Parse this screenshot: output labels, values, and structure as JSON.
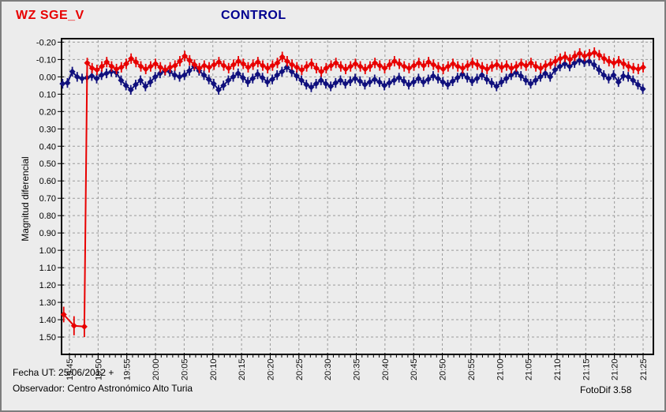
{
  "header": {
    "target_label": "WZ SGE_V",
    "control_label": "CONTROL"
  },
  "footer": {
    "fecha": "Fecha UT: 25/06/2012 +",
    "observador": "Observador: Centro Astronómico Alto Turia",
    "software": "FotoDif 3.58"
  },
  "colors": {
    "target_series": "#e80000",
    "control_series": "#10107d",
    "grid": "#9a9a9a",
    "axis": "#000000",
    "background": "#ececec"
  },
  "chart_data": {
    "type": "line",
    "title_left": "WZ SGE_V",
    "title_center": "CONTROL",
    "ylabel": "Magnitud diferencial",
    "y_axis_inverted": true,
    "y_tick_labels": [
      "-0.20",
      "-0.10",
      "0.00",
      "0.10",
      "0.20",
      "0.30",
      "0.40",
      "0.50",
      "0.60",
      "0.70",
      "0.80",
      "0.90",
      "1.00",
      "1.10",
      "1.20",
      "1.30",
      "1.40",
      "1.50"
    ],
    "x_tick_labels": [
      "19:45",
      "19:50",
      "19:55",
      "20:00",
      "20:05",
      "20:10",
      "20:15",
      "20:20",
      "20:25",
      "20:30",
      "20:35",
      "20:40",
      "20:45",
      "20:50",
      "20:55",
      "21:00",
      "21:05",
      "21:10",
      "21:15",
      "21:20",
      "21:25"
    ],
    "x_minutes_per_label": 5,
    "x_minor_tick_minutes": 1,
    "grid": true,
    "ylim": [
      -0.22,
      1.6
    ],
    "xlim_minutes": [
      -1.4,
      101.8
    ],
    "series": [
      {
        "name": "WZ SGE_V",
        "color": "#e80000",
        "default_err": 0.03,
        "pre_points": [
          [
            -1.0,
            1.37,
            0.045
          ],
          [
            0.8,
            1.435,
            0.055
          ],
          [
            2.6,
            1.44,
            0.06
          ]
        ],
        "x_start": 3.1,
        "x_step": 0.85,
        "mags": [
          -0.08,
          -0.05,
          -0.04,
          -0.06,
          -0.085,
          -0.06,
          -0.045,
          -0.055,
          -0.075,
          -0.105,
          -0.085,
          -0.06,
          -0.045,
          -0.06,
          -0.075,
          -0.055,
          -0.04,
          -0.055,
          -0.065,
          -0.09,
          -0.12,
          -0.095,
          -0.07,
          -0.05,
          -0.065,
          -0.055,
          -0.07,
          -0.085,
          -0.065,
          -0.05,
          -0.07,
          -0.09,
          -0.075,
          -0.055,
          -0.07,
          -0.085,
          -0.065,
          -0.05,
          -0.065,
          -0.08,
          -0.115,
          -0.09,
          -0.07,
          -0.055,
          -0.04,
          -0.06,
          -0.075,
          -0.05,
          -0.03,
          -0.05,
          -0.065,
          -0.08,
          -0.06,
          -0.045,
          -0.06,
          -0.075,
          -0.06,
          -0.045,
          -0.06,
          -0.08,
          -0.065,
          -0.05,
          -0.07,
          -0.09,
          -0.075,
          -0.06,
          -0.05,
          -0.065,
          -0.08,
          -0.065,
          -0.085,
          -0.07,
          -0.055,
          -0.045,
          -0.06,
          -0.075,
          -0.06,
          -0.05,
          -0.065,
          -0.08,
          -0.07,
          -0.055,
          -0.045,
          -0.06,
          -0.07,
          -0.055,
          -0.065,
          -0.05,
          -0.06,
          -0.075,
          -0.065,
          -0.08,
          -0.06,
          -0.05,
          -0.065,
          -0.075,
          -0.09,
          -0.105,
          -0.115,
          -0.1,
          -0.12,
          -0.135,
          -0.12,
          -0.13,
          -0.14,
          -0.125,
          -0.105,
          -0.09,
          -0.08,
          -0.09,
          -0.075,
          -0.06,
          -0.05,
          -0.045,
          -0.055
        ]
      },
      {
        "name": "CONTROL",
        "color": "#10107d",
        "default_err": 0.028,
        "pre_points": [],
        "x_start": -1.2,
        "x_step": 0.85,
        "mags": [
          0.04,
          0.035,
          -0.03,
          0.0,
          0.01,
          0.005,
          -0.005,
          0.01,
          -0.01,
          -0.02,
          -0.03,
          -0.025,
          0.02,
          0.05,
          0.075,
          0.045,
          0.02,
          0.055,
          0.03,
          0.0,
          -0.02,
          -0.035,
          -0.03,
          -0.01,
          0.0,
          -0.01,
          -0.035,
          -0.06,
          -0.035,
          -0.01,
          0.015,
          0.04,
          0.075,
          0.05,
          0.02,
          0.0,
          -0.02,
          0.005,
          0.03,
          0.01,
          -0.015,
          0.005,
          0.03,
          0.015,
          -0.01,
          -0.03,
          -0.055,
          -0.03,
          -0.005,
          0.02,
          0.045,
          0.06,
          0.04,
          0.02,
          0.04,
          0.055,
          0.035,
          0.02,
          0.04,
          0.025,
          0.01,
          0.025,
          0.045,
          0.03,
          0.015,
          0.03,
          0.05,
          0.035,
          0.02,
          0.005,
          0.025,
          0.045,
          0.03,
          0.01,
          0.03,
          0.015,
          -0.005,
          0.01,
          0.03,
          0.045,
          0.025,
          0.005,
          -0.015,
          0.005,
          0.025,
          0.01,
          -0.01,
          0.015,
          0.035,
          0.055,
          0.03,
          0.01,
          -0.01,
          -0.025,
          -0.005,
          0.02,
          0.04,
          0.02,
          0.0,
          -0.02,
          0.0,
          -0.04,
          -0.06,
          -0.075,
          -0.06,
          -0.08,
          -0.095,
          -0.085,
          -0.09,
          -0.07,
          -0.04,
          -0.01,
          0.01,
          -0.01,
          0.03,
          -0.005,
          0.0,
          0.02,
          0.045,
          0.07
        ]
      }
    ]
  }
}
